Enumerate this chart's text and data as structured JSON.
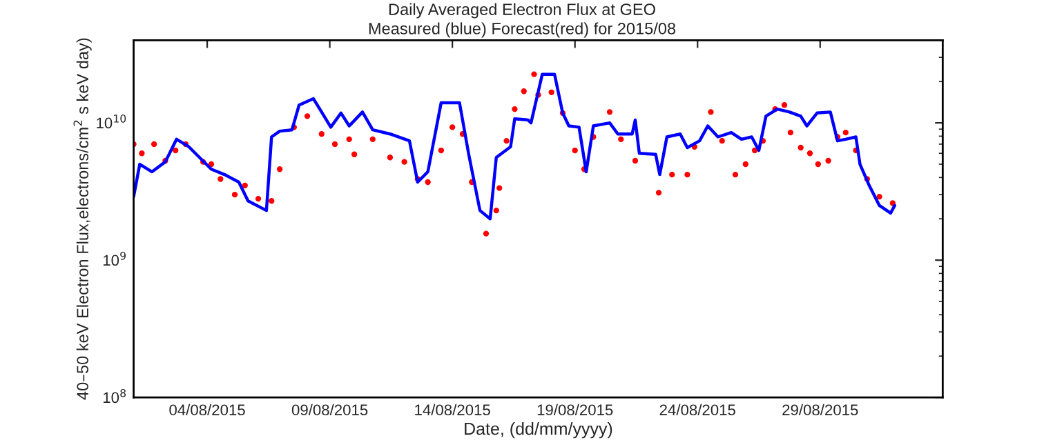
{
  "chart_data": {
    "type": "line",
    "title": "Daily Averaged Electron Flux at GEO",
    "subtitle": "Measured (blue) Forecast(red) for 2015/08",
    "xlabel": "Date, (dd/mm/yyyy)",
    "ylabel": "40–50 keV Electron Flux,electrons/cm$^{2}$ s keV day)",
    "log": "y",
    "grid": false,
    "xlim": [
      "2015-08-01",
      "2015-09-03"
    ],
    "xticks": [
      {
        "value": "2015-08-04",
        "label": "04/08/2015"
      },
      {
        "value": "2015-08-09",
        "label": "09/08/2015"
      },
      {
        "value": "2015-08-14",
        "label": "14/08/2015"
      },
      {
        "value": "2015-08-19",
        "label": "19/08/2015"
      },
      {
        "value": "2015-08-24",
        "label": "24/08/2015"
      },
      {
        "value": "2015-08-29",
        "label": "29/08/2015"
      }
    ],
    "ylim": [
      100000000,
      40000000000
    ],
    "yticks": [
      {
        "value": 100000000,
        "label": "10$^{8}$"
      },
      {
        "value": 1000000000,
        "label": "10$^{9}$"
      },
      {
        "value": 10000000000,
        "label": "10$^{10}$"
      }
    ],
    "series": [
      {
        "color": "#0000ff",
        "marker": "none",
        "line_style": "solid",
        "x": [
          "2015-08-01T00:00",
          "2015-08-01T06:00",
          "2015-08-01T18:00",
          "2015-08-02T07:00",
          "2015-08-02T18:00",
          "2015-08-03T06:00",
          "2015-08-04T04:00",
          "2015-08-04T17:00",
          "2015-08-05T07:00",
          "2015-08-05T16:00",
          "2015-08-06T10:00",
          "2015-08-06T15:00",
          "2015-08-06T23:00",
          "2015-08-07T11:00",
          "2015-08-07T18:00",
          "2015-08-08T08:00",
          "2015-08-08T16:00",
          "2015-08-09T01:00",
          "2015-08-09T11:00",
          "2015-08-09T19:00",
          "2015-08-10T08:00",
          "2015-08-10T18:00",
          "2015-08-11T11:00",
          "2015-08-12T06:00",
          "2015-08-12T14:00",
          "2015-08-13T00:00",
          "2015-08-13T13:00",
          "2015-08-14T07:00",
          "2015-08-14T16:00",
          "2015-08-15T03:00",
          "2015-08-15T13:00",
          "2015-08-15T19:00",
          "2015-08-16T09:00",
          "2015-08-16T13:00",
          "2015-08-17T02:00",
          "2015-08-17T05:00",
          "2015-08-17T16:00",
          "2015-08-18T04:00",
          "2015-08-18T12:00",
          "2015-08-18T18:00",
          "2015-08-19T04:00",
          "2015-08-19T11:00",
          "2015-08-19T18:00",
          "2015-08-20T10:00",
          "2015-08-20T18:00",
          "2015-08-21T08:00",
          "2015-08-21T11:00",
          "2015-08-21T15:00",
          "2015-08-22T07:00",
          "2015-08-22T11:00",
          "2015-08-22T18:00",
          "2015-08-23T07:00",
          "2015-08-23T14:00",
          "2015-08-24T02:00",
          "2015-08-24T10:00",
          "2015-08-24T20:00",
          "2015-08-25T09:00",
          "2015-08-25T19:00",
          "2015-08-26T05:00",
          "2015-08-26T12:00",
          "2015-08-26T19:00",
          "2015-08-27T06:00",
          "2015-08-27T18:00",
          "2015-08-28T05:00",
          "2015-08-28T11:00",
          "2015-08-28T21:00",
          "2015-08-29T10:00",
          "2015-08-29T17:00",
          "2015-08-30T01:00",
          "2015-08-30T11:00",
          "2015-08-30T15:00",
          "2015-08-31T00:00",
          "2015-08-31T10:00",
          "2015-08-31T21:00",
          "2015-09-01T01:00"
        ],
        "values": [
          2900000000.0,
          5000000000.0,
          4400000000.0,
          5200000000.0,
          7600000000.0,
          6700000000.0,
          4600000000.0,
          4200000000.0,
          3700000000.0,
          2700000000.0,
          2300000000.0,
          7900000000.0,
          8700000000.0,
          8900000000.0,
          13500000000.0,
          15000000000.0,
          12000000000.0,
          9300000000.0,
          11800000000.0,
          9500000000.0,
          12000000000.0,
          8900000000.0,
          8300000000.0,
          7400000000.0,
          3700000000.0,
          4400000000.0,
          14000000000.0,
          14000000000.0,
          5900000000.0,
          2300000000.0,
          2000000000.0,
          5600000000.0,
          6700000000.0,
          10700000000.0,
          10500000000.0,
          10000000000.0,
          22600000000.0,
          22600000000.0,
          11800000000.0,
          9500000000.0,
          9300000000.0,
          4400000000.0,
          9500000000.0,
          10000000000.0,
          8300000000.0,
          8300000000.0,
          10500000000.0,
          6000000000.0,
          5900000000.0,
          4200000000.0,
          7900000000.0,
          8300000000.0,
          6600000000.0,
          7400000000.0,
          9500000000.0,
          7900000000.0,
          8500000000.0,
          7600000000.0,
          7900000000.0,
          6300000000.0,
          11200000000.0,
          12600000000.0,
          12000000000.0,
          11200000000.0,
          9500000000.0,
          11800000000.0,
          12000000000.0,
          7400000000.0,
          7600000000.0,
          7900000000.0,
          5000000000.0,
          3500000000.0,
          2500000000.0,
          2200000000.0,
          2500000000.0
        ]
      },
      {
        "type": "scatter",
        "color": "#ff0000",
        "marker": "circle",
        "x": [
          "2015-08-01T00:00",
          "2015-08-01T08:00",
          "2015-08-01T20:00",
          "2015-08-02T07:00",
          "2015-08-02T17:00",
          "2015-08-03T03:00",
          "2015-08-03T20:00",
          "2015-08-04T04:00",
          "2015-08-04T13:00",
          "2015-08-05T03:00",
          "2015-08-05T13:00",
          "2015-08-06T02:00",
          "2015-08-06T15:00",
          "2015-08-06T23:00",
          "2015-08-07T13:00",
          "2015-08-08T02:00",
          "2015-08-08T16:00",
          "2015-08-09T05:00",
          "2015-08-09T19:00",
          "2015-08-10T00:00",
          "2015-08-10T18:00",
          "2015-08-11T11:00",
          "2015-08-12T01:00",
          "2015-08-12T14:00",
          "2015-08-13T00:00",
          "2015-08-13T13:00",
          "2015-08-14T00:00",
          "2015-08-14T10:00",
          "2015-08-14T19:00",
          "2015-08-15T09:00",
          "2015-08-15T19:00",
          "2015-08-15T22:00",
          "2015-08-16T05:00",
          "2015-08-16T13:00",
          "2015-08-16T22:00",
          "2015-08-17T08:00",
          "2015-08-17T12:00",
          "2015-08-18T01:00",
          "2015-08-18T12:00",
          "2015-08-19T00:00",
          "2015-08-19T09:00",
          "2015-08-19T18:00",
          "2015-08-20T10:00",
          "2015-08-20T21:00",
          "2015-08-21T11:00",
          "2015-08-22T10:00",
          "2015-08-22T23:00",
          "2015-08-23T14:00",
          "2015-08-23T21:00",
          "2015-08-24T13:00",
          "2015-08-25T00:00",
          "2015-08-25T13:00",
          "2015-08-25T23:00",
          "2015-08-26T08:00",
          "2015-08-26T16:00",
          "2015-08-27T04:00",
          "2015-08-27T13:00",
          "2015-08-27T19:00",
          "2015-08-28T05:00",
          "2015-08-28T14:00",
          "2015-08-28T22:00",
          "2015-08-29T08:00",
          "2015-08-29T17:00",
          "2015-08-30T01:00",
          "2015-08-30T11:00",
          "2015-08-30T22:00",
          "2015-08-31T10:00",
          "2015-08-31T23:00"
        ],
        "values": [
          7000000000.0,
          6000000000.0,
          7000000000.0,
          5300000000.0,
          6300000000.0,
          7000000000.0,
          5200000000.0,
          5000000000.0,
          3900000000.0,
          3000000000.0,
          3500000000.0,
          2800000000.0,
          2700000000.0,
          4600000000.0,
          9300000000.0,
          11200000000.0,
          8300000000.0,
          7000000000.0,
          7600000000.0,
          5900000000.0,
          7600000000.0,
          5600000000.0,
          5200000000.0,
          3900000000.0,
          3700000000.0,
          6300000000.0,
          9300000000.0,
          8300000000.0,
          3700000000.0,
          1560000000.0,
          2300000000.0,
          3350000000.0,
          7400000000.0,
          12600000000.0,
          17000000000.0,
          22600000000.0,
          16000000000.0,
          16700000000.0,
          11800000000.0,
          6300000000.0,
          4600000000.0,
          7900000000.0,
          12000000000.0,
          7600000000.0,
          5300000000.0,
          3100000000.0,
          4200000000.0,
          4200000000.0,
          6700000000.0,
          12000000000.0,
          7400000000.0,
          4200000000.0,
          5000000000.0,
          6300000000.0,
          7400000000.0,
          12600000000.0,
          13500000000.0,
          8500000000.0,
          6600000000.0,
          6000000000.0,
          5000000000.0,
          5300000000.0,
          7900000000.0,
          8500000000.0,
          6300000000.0,
          3900000000.0,
          2900000000.0,
          2600000000.0
        ]
      }
    ]
  }
}
